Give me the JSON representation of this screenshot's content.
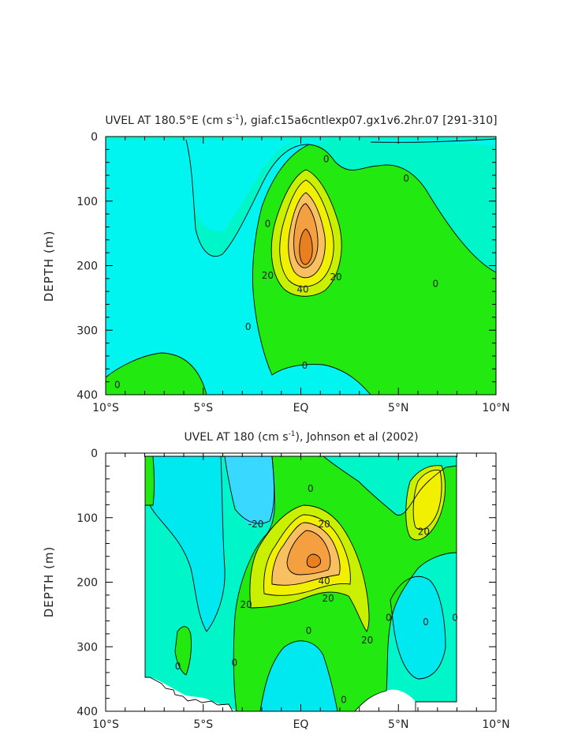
{
  "chart_data": [
    {
      "type": "contour",
      "title": "UVEL AT 180.5°E (cm s",
      "title_sup": "-1",
      "title_rest": "), giaf.c15a6cntlexp07.gx1v6.2hr.07 [291-310]",
      "ylabel": "DEPTH (m)",
      "x_ticks": [
        "10°S",
        "5°S",
        "EQ",
        "5°N",
        "10°N"
      ],
      "x_tick_values": [
        -10,
        -5,
        0,
        5,
        10
      ],
      "y_ticks": [
        "0",
        "100",
        "200",
        "300",
        "400"
      ],
      "y_tick_values": [
        0,
        100,
        200,
        300,
        400
      ],
      "xlim": [
        -10,
        10
      ],
      "ylim": [
        0,
        400
      ],
      "y_inverted": true,
      "contour_interval": 10,
      "contour_labels": [
        {
          "text": "0",
          "x": 1.3,
          "y": 35
        },
        {
          "text": "0",
          "x": 5.4,
          "y": 65
        },
        {
          "text": "0",
          "x": 0.2,
          "y": 355
        },
        {
          "text": "0",
          "x": -2.7,
          "y": 295
        },
        {
          "text": "0",
          "x": -9.4,
          "y": 385
        },
        {
          "text": "0",
          "x": 6.9,
          "y": 228
        },
        {
          "text": "0",
          "x": -1.7,
          "y": 135
        },
        {
          "text": "20",
          "x": -1.7,
          "y": 215
        },
        {
          "text": "20",
          "x": 1.8,
          "y": 218
        },
        {
          "text": "40",
          "x": 0.1,
          "y": 237
        }
      ]
    },
    {
      "type": "contour",
      "title": "UVEL AT 180 (cm s",
      "title_sup": "-1",
      "title_rest": "), Johnson et al (2002)",
      "ylabel": "DEPTH (m)",
      "x_ticks": [
        "10°S",
        "5°S",
        "EQ",
        "5°N",
        "10°N"
      ],
      "x_tick_values": [
        -10,
        -5,
        0,
        5,
        10
      ],
      "y_ticks": [
        "0",
        "100",
        "200",
        "300",
        "400"
      ],
      "y_tick_values": [
        0,
        100,
        200,
        300,
        400
      ],
      "xlim": [
        -10,
        10
      ],
      "ylim": [
        0,
        400
      ],
      "y_inverted": true,
      "data_xlim": [
        -8,
        8
      ],
      "data_ylim": [
        5,
        385
      ],
      "contour_interval": 10,
      "contour_labels": [
        {
          "text": "-20",
          "x": -2.3,
          "y": 110
        },
        {
          "text": "0",
          "x": 0.5,
          "y": 55
        },
        {
          "text": "0",
          "x": 0.4,
          "y": 275
        },
        {
          "text": "0",
          "x": -3.4,
          "y": 325
        },
        {
          "text": "0",
          "x": 4.5,
          "y": 255
        },
        {
          "text": "0",
          "x": 6.4,
          "y": 262
        },
        {
          "text": "0",
          "x": 7.9,
          "y": 255
        },
        {
          "text": "0",
          "x": -6.3,
          "y": 330
        },
        {
          "text": "0",
          "x": 2.2,
          "y": 382
        },
        {
          "text": "20",
          "x": 1.2,
          "y": 110
        },
        {
          "text": "20",
          "x": 6.3,
          "y": 122
        },
        {
          "text": "20",
          "x": 1.4,
          "y": 225
        },
        {
          "text": "20",
          "x": -2.8,
          "y": 235
        },
        {
          "text": "20",
          "x": 3.4,
          "y": 290
        },
        {
          "text": "40",
          "x": 1.2,
          "y": 198
        }
      ]
    }
  ]
}
